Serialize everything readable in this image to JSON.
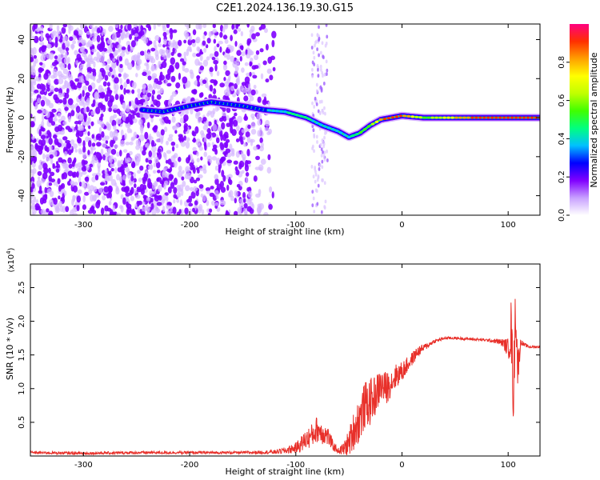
{
  "title": "C2E1.2024.136.19.30.G15",
  "chart_data": [
    {
      "type": "heatmap",
      "xlabel": "Height of straight line (km)",
      "ylabel": "Frequency (Hz)",
      "xlim": [
        -350,
        130
      ],
      "ylim": [
        -50,
        48
      ],
      "xticks": [
        -300,
        -200,
        -100,
        0,
        100
      ],
      "yticks": [
        -40,
        -20,
        0,
        20,
        40
      ],
      "colorbar": {
        "label": "Normalized spectral amplitude",
        "range": [
          0.0,
          1.0
        ],
        "ticks": [
          "0.0",
          "0.2",
          "0.4",
          "0.6",
          "0.8"
        ],
        "tick_values": [
          0.0,
          0.2,
          0.4,
          0.6,
          0.8
        ],
        "colors": [
          "#ffffff",
          "#c8a0ff",
          "#8000ff",
          "#0000ff",
          "#00c0ff",
          "#00ff80",
          "#40ff00",
          "#c0ff00",
          "#ffff00",
          "#ffa000",
          "#ff3000",
          "#ff0080"
        ]
      },
      "signal_track": {
        "x": [
          -245,
          -225,
          -200,
          -180,
          -150,
          -130,
          -110,
          -90,
          -75,
          -60,
          -50,
          -40,
          -30,
          -20,
          -10,
          0,
          20,
          40,
          60,
          80,
          100,
          130
        ],
        "y": [
          4,
          3,
          6,
          8,
          6,
          4,
          3,
          0,
          -4,
          -7,
          -10,
          -8,
          -4,
          -1,
          0,
          1,
          0,
          0,
          0,
          0,
          0,
          0
        ],
        "peak_amplitude": [
          0.25,
          0.3,
          0.25,
          0.25,
          0.25,
          0.3,
          0.4,
          0.45,
          0.35,
          0.35,
          0.4,
          0.5,
          0.6,
          0.85,
          0.9,
          0.9,
          0.55,
          0.7,
          0.85,
          0.9,
          0.9,
          0.9
        ]
      },
      "noise_region": {
        "x_range": [
          -350,
          -120
        ],
        "y_range": [
          -50,
          48
        ],
        "level": 0.15
      }
    },
    {
      "type": "line",
      "xlabel": "Height of straight line (km)",
      "ylabel": "SNR (10 * v/v)",
      "y_multiplier": "(x10",
      "y_multiplier_exp": "4",
      "y_multiplier_close": ")",
      "xlim": [
        -350,
        130
      ],
      "ylim": [
        0,
        2.85
      ],
      "xticks": [
        -300,
        -200,
        -100,
        0,
        100
      ],
      "yticks": [
        "0.5",
        "1.0",
        "1.5",
        "2.0",
        "2.5"
      ],
      "ytick_values": [
        0.5,
        1.0,
        1.5,
        2.0,
        2.5
      ],
      "series": [
        {
          "color": "#e8302a",
          "x": [
            -350,
            -300,
            -250,
            -200,
            -150,
            -120,
            -110,
            -100,
            -95,
            -90,
            -85,
            -80,
            -75,
            -70,
            -65,
            -60,
            -55,
            -50,
            -45,
            -40,
            -35,
            -30,
            -25,
            -20,
            -15,
            -10,
            -5,
            0,
            5,
            10,
            15,
            20,
            25,
            30,
            40,
            50,
            60,
            70,
            80,
            90,
            95,
            100,
            103,
            105,
            107,
            109,
            112,
            115,
            120,
            130
          ],
          "y": [
            0.05,
            0.04,
            0.05,
            0.05,
            0.05,
            0.06,
            0.08,
            0.12,
            0.18,
            0.25,
            0.3,
            0.4,
            0.35,
            0.3,
            0.15,
            0.08,
            0.1,
            0.2,
            0.4,
            0.55,
            0.75,
            0.8,
            0.9,
            1.05,
            1.0,
            1.1,
            1.2,
            1.25,
            1.35,
            1.45,
            1.55,
            1.6,
            1.65,
            1.7,
            1.75,
            1.75,
            1.74,
            1.73,
            1.72,
            1.7,
            1.68,
            1.6,
            1.9,
            0.8,
            2.3,
            1.3,
            1.7,
            1.65,
            1.62,
            1.62
          ],
          "noise_amplitude": [
            0.02,
            0.02,
            0.02,
            0.02,
            0.02,
            0.03,
            0.05,
            0.08,
            0.12,
            0.15,
            0.18,
            0.2,
            0.18,
            0.15,
            0.08,
            0.04,
            0.1,
            0.2,
            0.3,
            0.35,
            0.35,
            0.35,
            0.3,
            0.25,
            0.25,
            0.2,
            0.18,
            0.15,
            0.12,
            0.1,
            0.08,
            0.06,
            0.04,
            0.03,
            0.02,
            0.02,
            0.02,
            0.02,
            0.02,
            0.04,
            0.06,
            0.15,
            0.5,
            0.4,
            0.5,
            0.3,
            0.05,
            0.03,
            0.02,
            0.02
          ]
        }
      ]
    }
  ]
}
